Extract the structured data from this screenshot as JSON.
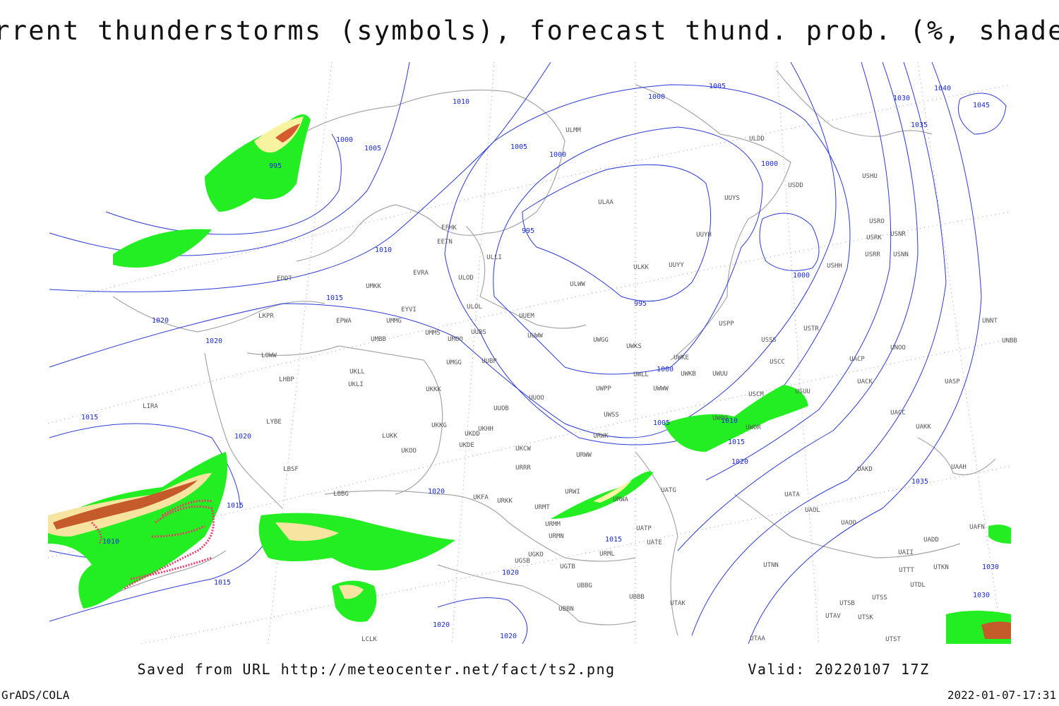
{
  "title": "Current thunderstorms (symbols), forecast thund. prob. (%, shaded)",
  "source": "Saved from URL http://meteocenter.net/fact/ts2.png",
  "valid": "Valid: 20220107 17Z",
  "software": "GrADS/COLA",
  "timestamp": "2022-01-07-17:31",
  "isobar_labels": [
    "1010",
    "1000",
    "1005",
    "995",
    "1005",
    "1000",
    "1000",
    "1005",
    "1000",
    "1030",
    "1040",
    "1045",
    "1035",
    "995",
    "1010",
    "1015",
    "1020",
    "1020",
    "995",
    "1000",
    "1000",
    "1015",
    "1020",
    "1005",
    "1010",
    "1015",
    "1020",
    "1035",
    "1015",
    "1020",
    "1010",
    "1015",
    "1015",
    "1020",
    "1020",
    "1020",
    "1030",
    "1030"
  ],
  "stations": [
    "ULMM",
    "ULDD",
    "USHU",
    "USDD",
    "ULAA",
    "UUYS",
    "USRO",
    "USNR",
    "USRK",
    "UUYH",
    "EFHK",
    "EETN",
    "ULLI",
    "USNN",
    "USRR",
    "USHH",
    "ULOD",
    "EVRA",
    "ULKK",
    "UUYY",
    "ULWW",
    "EDDT",
    "UMKK",
    "ULOL",
    "EYVI",
    "UUEM",
    "LKPR",
    "EPWA",
    "UMMG",
    "UMMS",
    "UUBS",
    "UUWW",
    "USPP",
    "USTR",
    "UMOO",
    "UMBB",
    "UWGG",
    "UWKS",
    "USSS",
    "UNOO",
    "UNBB",
    "UNNT",
    "LOWW",
    "UMGG",
    "UUBP",
    "UWKE",
    "USCC",
    "UACP",
    "UKLL",
    "UWLL",
    "UWKB",
    "UWUU",
    "UACK",
    "UASP",
    "LHBP",
    "UKLI",
    "UKKK",
    "UWPP",
    "UWWW",
    "USCM",
    "USUU",
    "UUOO",
    "UUOB",
    "LIRA",
    "UACC",
    "UWSS",
    "LYBE",
    "UKHH",
    "UKDD",
    "UKKG",
    "UWOO",
    "UAKK",
    "LUKK",
    "URWK",
    "UWOR",
    "UKOO",
    "UKDE",
    "UKCW",
    "URWW",
    "LBSF",
    "URRR",
    "UAKD",
    "UAAH",
    "LBBG",
    "URWI",
    "UATG",
    "UKFA",
    "URKK",
    "URMT",
    "URWA",
    "UATA",
    "UAOL",
    "UAOO",
    "URMM",
    "UATP",
    "UAFN",
    "URMN",
    "UADD",
    "UATE",
    "UGKO",
    "URML",
    "UAII",
    "UGSB",
    "UGTB",
    "UTNN",
    "UTKN",
    "UTTT",
    "UTDL",
    "UBBG",
    "UBBB",
    "UTAK",
    "UTSS",
    "UTSB",
    "UBBN",
    "UTAV",
    "UTSK",
    "UTAA",
    "UTST",
    "LCLK"
  ]
}
